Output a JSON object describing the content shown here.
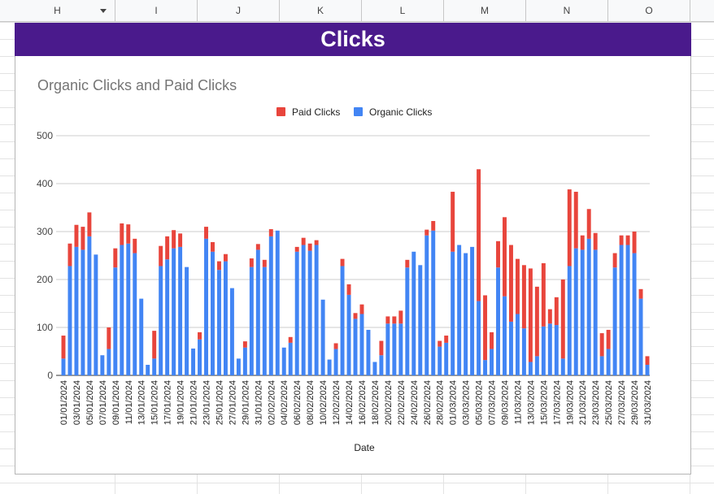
{
  "sheet": {
    "columns": [
      "H",
      "I",
      "J",
      "K",
      "L",
      "M",
      "N",
      "O"
    ],
    "banner_title": "Clicks"
  },
  "colors": {
    "banner": "#4a1a8c",
    "paid": "#e8453c",
    "organic": "#4285f4"
  },
  "chart_data": {
    "type": "bar",
    "stacked": true,
    "title": "Organic Clicks and Paid Clicks",
    "xlabel": "Date",
    "ylabel": "",
    "ylim": [
      0,
      500
    ],
    "yticks": [
      0,
      100,
      200,
      300,
      400,
      500
    ],
    "grid": true,
    "legend": "top",
    "legend_order": [
      "Paid Clicks",
      "Organic Clicks"
    ],
    "categories": [
      "01/01/2024",
      "02/01/2024",
      "03/01/2024",
      "04/01/2024",
      "05/01/2024",
      "06/01/2024",
      "07/01/2024",
      "08/01/2024",
      "09/01/2024",
      "10/01/2024",
      "11/01/2024",
      "12/01/2024",
      "13/01/2024",
      "14/01/2024",
      "15/01/2024",
      "16/01/2024",
      "17/01/2024",
      "18/01/2024",
      "19/01/2024",
      "20/01/2024",
      "21/01/2024",
      "22/01/2024",
      "23/01/2024",
      "24/01/2024",
      "25/01/2024",
      "26/01/2024",
      "27/01/2024",
      "28/01/2024",
      "29/01/2024",
      "30/01/2024",
      "31/01/2024",
      "01/02/2024",
      "02/02/2024",
      "03/02/2024",
      "04/02/2024",
      "05/02/2024",
      "06/02/2024",
      "07/02/2024",
      "08/02/2024",
      "09/02/2024",
      "10/02/2024",
      "11/02/2024",
      "12/02/2024",
      "13/02/2024",
      "14/02/2024",
      "15/02/2024",
      "16/02/2024",
      "17/02/2024",
      "18/02/2024",
      "19/02/2024",
      "20/02/2024",
      "21/02/2024",
      "22/02/2024",
      "23/02/2024",
      "24/02/2024",
      "25/02/2024",
      "26/02/2024",
      "27/02/2024",
      "28/02/2024",
      "29/02/2024",
      "01/03/2024",
      "02/03/2024",
      "03/03/2024",
      "04/03/2024",
      "05/03/2024",
      "06/03/2024",
      "07/03/2024",
      "08/03/2024",
      "09/03/2024",
      "10/03/2024",
      "11/03/2024",
      "12/03/2024",
      "13/03/2024",
      "14/03/2024",
      "15/03/2024",
      "16/03/2024",
      "17/03/2024",
      "18/03/2024",
      "19/03/2024",
      "20/03/2024",
      "21/03/2024",
      "22/03/2024",
      "23/03/2024",
      "24/03/2024",
      "25/03/2024",
      "26/03/2024",
      "27/03/2024",
      "28/03/2024",
      "29/03/2024",
      "30/03/2024",
      "31/03/2024"
    ],
    "series": [
      {
        "name": "Organic Clicks",
        "values": [
          35,
          228,
          268,
          262,
          290,
          252,
          42,
          55,
          225,
          272,
          275,
          255,
          160,
          22,
          35,
          228,
          242,
          265,
          268,
          226,
          56,
          75,
          285,
          258,
          220,
          238,
          182,
          35,
          58,
          226,
          262,
          226,
          290,
          302,
          58,
          68,
          258,
          272,
          260,
          272,
          158,
          33,
          55,
          228,
          168,
          118,
          128,
          95,
          28,
          42,
          108,
          108,
          108,
          225,
          258,
          230,
          292,
          302,
          60,
          68,
          258,
          272,
          255,
          268,
          155,
          32,
          55,
          225,
          165,
          112,
          128,
          98,
          28,
          40,
          102,
          108,
          105,
          35,
          228,
          265,
          262,
          285,
          262,
          40,
          55,
          225,
          272,
          272,
          255,
          160,
          22
        ]
      },
      {
        "name": "Paid Clicks",
        "values": [
          48,
          47,
          46,
          48,
          50,
          0,
          0,
          45,
          40,
          45,
          40,
          30,
          0,
          0,
          58,
          42,
          48,
          38,
          28,
          0,
          0,
          15,
          25,
          20,
          18,
          15,
          0,
          0,
          13,
          18,
          12,
          15,
          15,
          0,
          0,
          12,
          10,
          15,
          15,
          10,
          0,
          0,
          12,
          15,
          22,
          12,
          20,
          0,
          0,
          30,
          15,
          15,
          27,
          16,
          0,
          0,
          12,
          20,
          12,
          15,
          125,
          0,
          0,
          0,
          275,
          135,
          35,
          55,
          165,
          160,
          115,
          132,
          195,
          145,
          132,
          30,
          58,
          165,
          160,
          118,
          30,
          62,
          35,
          48,
          40,
          30,
          20,
          20,
          45,
          20,
          18
        ]
      }
    ]
  }
}
